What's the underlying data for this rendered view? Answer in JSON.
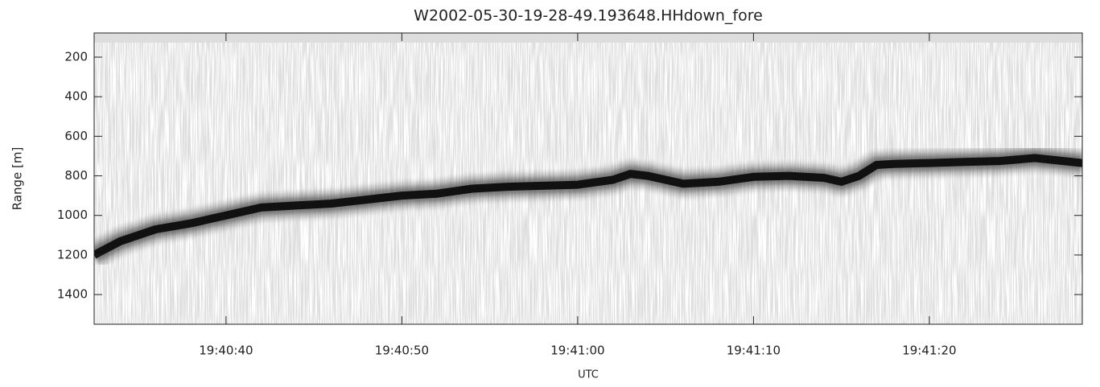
{
  "chart_data": {
    "type": "line",
    "title": "W2002-05-30-19-28-49.193648.HHdown_fore",
    "x_label": "UTC",
    "y_label": "Range [m]",
    "x": [
      "19:40:32.5",
      "19:40:34",
      "19:40:36",
      "19:40:38",
      "19:40:40",
      "19:40:42",
      "19:40:44",
      "19:40:46",
      "19:40:48",
      "19:40:50",
      "19:40:52",
      "19:40:54",
      "19:40:56",
      "19:40:58",
      "19:41:00",
      "19:41:02",
      "19:41:03",
      "19:41:04",
      "19:41:06",
      "19:41:08",
      "19:41:10",
      "19:41:12",
      "19:41:14",
      "19:41:15",
      "19:41:16",
      "19:41:17",
      "19:41:18",
      "19:41:20",
      "19:41:22",
      "19:41:24",
      "19:41:26",
      "19:41:28.7"
    ],
    "series": [
      {
        "color": "#111111",
        "values": [
          1200,
          1130,
          1070,
          1040,
          1000,
          960,
          950,
          940,
          920,
          900,
          890,
          865,
          855,
          850,
          845,
          820,
          790,
          800,
          840,
          830,
          805,
          800,
          810,
          830,
          800,
          745,
          740,
          735,
          730,
          725,
          710,
          735
        ]
      }
    ],
    "xlim": [
      "19:40:32.5",
      "19:41:28.7"
    ],
    "xticks": [
      "19:40:40",
      "19:40:50",
      "19:41:00",
      "19:41:10",
      "19:41:20"
    ],
    "ylim": [
      1550,
      78
    ],
    "yticks": [
      200,
      400,
      600,
      800,
      1000,
      1200,
      1400
    ],
    "grid": false
  }
}
